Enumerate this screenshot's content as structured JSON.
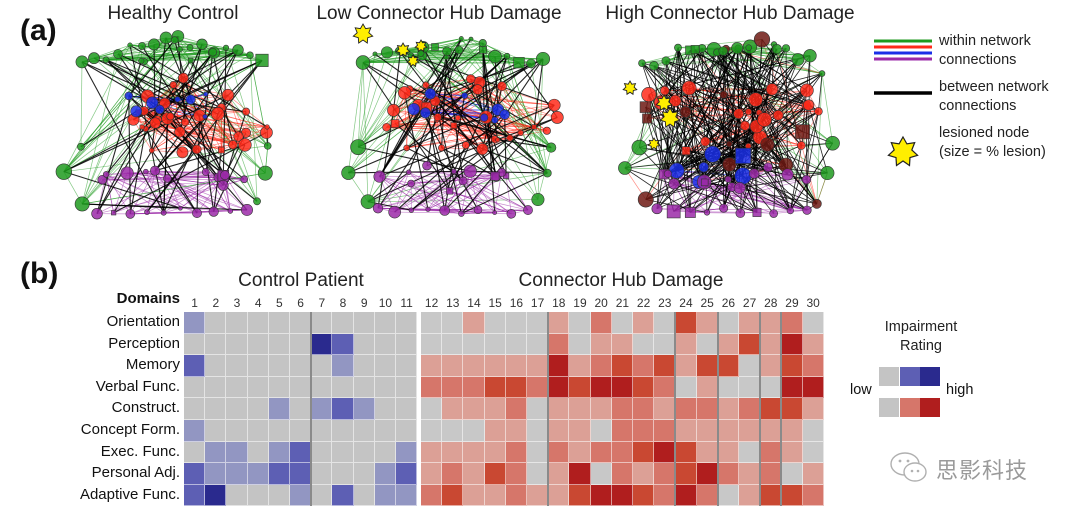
{
  "panel_a": {
    "label": "(a)",
    "networks": [
      {
        "title": "Healthy Control",
        "variant": "healthy",
        "lesions": 0
      },
      {
        "title": "Low Connector Hub Damage",
        "variant": "low",
        "lesions": 4
      },
      {
        "title": "High Connector Hub Damage",
        "variant": "high",
        "lesions": 4
      }
    ],
    "legend": {
      "within_label_1": "within network",
      "within_label_2": "connections",
      "between_label_1": "between network",
      "between_label_2": "connections",
      "lesion_label_1": "lesioned node",
      "lesion_label_2": "(size = % lesion)",
      "colors": {
        "green": "#1f9a1f",
        "red": "#ff2a1a",
        "blue": "#1a2fe8",
        "purple": "#9b2aa8",
        "black": "#000000",
        "lesion": "#ffee00"
      }
    }
  },
  "panel_b": {
    "label": "(b)",
    "domains_header": "Domains",
    "control_title": "Control Patient",
    "hub_title": "Connector Hub Damage",
    "domains": [
      "Orientation",
      "Perception",
      "Memory",
      "Verbal Func.",
      "Construct.",
      "Concept Form.",
      "Exec. Func.",
      "Personal Adj.",
      "Adaptive Func."
    ],
    "control_columns": [
      "1",
      "2",
      "3",
      "4",
      "5",
      "6",
      "7",
      "8",
      "9",
      "10",
      "11"
    ],
    "hub_columns": [
      "12",
      "13",
      "14",
      "15",
      "16",
      "17",
      "18",
      "19",
      "20",
      "21",
      "22",
      "23",
      "24",
      "25",
      "26",
      "27",
      "28",
      "29",
      "30"
    ],
    "control_ratings": [
      [
        1,
        0,
        0,
        0,
        0,
        0,
        0,
        0,
        0,
        0,
        0
      ],
      [
        0,
        0,
        0,
        0,
        0,
        0,
        3,
        2,
        0,
        0,
        0
      ],
      [
        2,
        0,
        0,
        0,
        0,
        0,
        0,
        1,
        0,
        0,
        0
      ],
      [
        0,
        0,
        0,
        0,
        0,
        0,
        0,
        0,
        0,
        0,
        0
      ],
      [
        0,
        0,
        0,
        0,
        1,
        0,
        1,
        2,
        1,
        0,
        0
      ],
      [
        1,
        0,
        0,
        0,
        0,
        0,
        0,
        0,
        0,
        0,
        0
      ],
      [
        0,
        1,
        1,
        0,
        1,
        2,
        0,
        0,
        0,
        0,
        1
      ],
      [
        2,
        1,
        1,
        1,
        2,
        2,
        0,
        0,
        0,
        1,
        2
      ],
      [
        2,
        3,
        0,
        0,
        0,
        1,
        0,
        2,
        0,
        1,
        1
      ]
    ],
    "hub_ratings": [
      [
        0,
        0,
        1,
        0,
        0,
        0,
        1,
        0,
        2,
        0,
        1,
        0,
        3,
        1,
        0,
        1,
        1,
        2,
        0
      ],
      [
        0,
        0,
        0,
        0,
        0,
        0,
        2,
        0,
        1,
        1,
        0,
        0,
        1,
        0,
        1,
        3,
        1,
        4,
        1
      ],
      [
        1,
        1,
        1,
        1,
        1,
        1,
        4,
        1,
        2,
        3,
        2,
        3,
        1,
        3,
        3,
        0,
        1,
        3,
        2
      ],
      [
        2,
        2,
        2,
        3,
        3,
        2,
        4,
        3,
        4,
        4,
        3,
        2,
        0,
        1,
        0,
        0,
        0,
        4,
        4
      ],
      [
        0,
        1,
        1,
        1,
        2,
        0,
        1,
        1,
        1,
        2,
        2,
        1,
        2,
        2,
        1,
        2,
        3,
        3,
        1
      ],
      [
        0,
        0,
        0,
        1,
        1,
        0,
        1,
        1,
        0,
        2,
        2,
        2,
        1,
        1,
        1,
        1,
        1,
        1,
        0
      ],
      [
        1,
        1,
        1,
        1,
        2,
        0,
        2,
        1,
        2,
        2,
        3,
        4,
        3,
        1,
        1,
        0,
        2,
        1,
        0
      ],
      [
        1,
        2,
        1,
        3,
        2,
        0,
        1,
        4,
        0,
        2,
        1,
        2,
        3,
        4,
        2,
        1,
        2,
        0,
        1
      ],
      [
        2,
        3,
        1,
        1,
        2,
        1,
        1,
        3,
        4,
        4,
        3,
        2,
        4,
        2,
        0,
        1,
        3,
        3,
        2
      ]
    ],
    "blue_scale": [
      "#c4c4c4",
      "#9296c2",
      "#5d5fb4",
      "#2a2a8e"
    ],
    "red_scale": [
      "#c8c8c8",
      "#dca096",
      "#d6766a",
      "#c94832",
      "#b01e1e"
    ],
    "legend": {
      "title_1": "Impairment",
      "title_2": "Rating",
      "low_label": "low",
      "high_label": "high",
      "blue_swatches": [
        "#c4c4c4",
        "#5d5fb4",
        "#2a2a8e"
      ],
      "red_swatches": [
        "#c4c4c4",
        "#d6766a",
        "#b01e1e"
      ]
    }
  },
  "watermark": {
    "text": "思影科技"
  }
}
